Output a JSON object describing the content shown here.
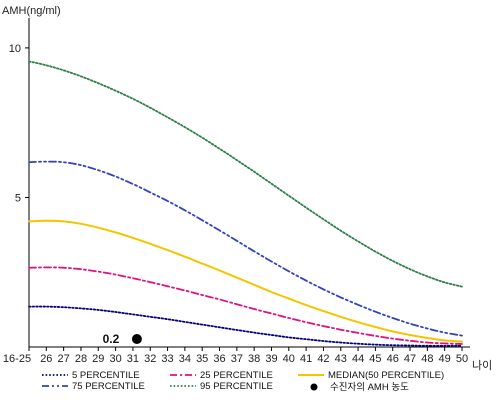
{
  "chart_data": {
    "type": "line",
    "ylabel": "AMH(ng/ml)",
    "xlabel": "나이",
    "categories": [
      "16-25",
      "26",
      "27",
      "28",
      "29",
      "30",
      "31",
      "32",
      "33",
      "34",
      "35",
      "36",
      "37",
      "38",
      "39",
      "40",
      "41",
      "42",
      "43",
      "44",
      "45",
      "46",
      "47",
      "48",
      "49",
      "50"
    ],
    "ylim": [
      0,
      11
    ],
    "yticks": [
      5,
      10
    ],
    "grid": false,
    "series": [
      {
        "name": "5 PERCENTILE",
        "color": "#000080",
        "style": "dotted",
        "values": [
          1.35,
          1.35,
          1.33,
          1.29,
          1.24,
          1.17,
          1.09,
          1.01,
          0.93,
          0.84,
          0.75,
          0.66,
          0.57,
          0.48,
          0.4,
          0.32,
          0.26,
          0.2,
          0.15,
          0.11,
          0.08,
          0.06,
          0.05,
          0.04,
          0.04,
          0.04
        ]
      },
      {
        "name": "25 PERCENTILE",
        "color": "#e0117f",
        "style": "dashdot",
        "values": [
          2.65,
          2.66,
          2.65,
          2.6,
          2.52,
          2.42,
          2.3,
          2.17,
          2.03,
          1.89,
          1.74,
          1.59,
          1.43,
          1.27,
          1.12,
          0.97,
          0.83,
          0.7,
          0.58,
          0.47,
          0.37,
          0.28,
          0.21,
          0.15,
          0.12,
          0.1
        ]
      },
      {
        "name": "MEDIAN(50 PERCENTILE)",
        "color": "#f5c400",
        "style": "solid",
        "values": [
          4.2,
          4.22,
          4.2,
          4.12,
          3.99,
          3.83,
          3.65,
          3.45,
          3.24,
          3.02,
          2.79,
          2.56,
          2.32,
          2.08,
          1.84,
          1.62,
          1.4,
          1.2,
          1.01,
          0.83,
          0.67,
          0.52,
          0.4,
          0.3,
          0.22,
          0.18
        ]
      },
      {
        "name": "75 PERCENTILE",
        "color": "#3344bb",
        "style": "dashdotdot",
        "values": [
          6.18,
          6.2,
          6.18,
          6.08,
          5.91,
          5.7,
          5.45,
          5.17,
          4.88,
          4.57,
          4.24,
          3.9,
          3.55,
          3.2,
          2.86,
          2.53,
          2.22,
          1.93,
          1.66,
          1.41,
          1.18,
          0.97,
          0.78,
          0.62,
          0.48,
          0.38
        ]
      },
      {
        "name": "95 PERCENTILE",
        "color": "#2e7d4a",
        "style": "dotted",
        "values": [
          9.55,
          9.42,
          9.25,
          9.05,
          8.82,
          8.57,
          8.3,
          8.0,
          7.68,
          7.35,
          7.0,
          6.63,
          6.25,
          5.86,
          5.46,
          5.06,
          4.66,
          4.27,
          3.89,
          3.53,
          3.19,
          2.88,
          2.6,
          2.36,
          2.16,
          2.02
        ]
      }
    ],
    "marker": {
      "label": "수진자의 AMH 농도",
      "x": "31",
      "y": 0.2,
      "annotation": "0.2"
    }
  }
}
